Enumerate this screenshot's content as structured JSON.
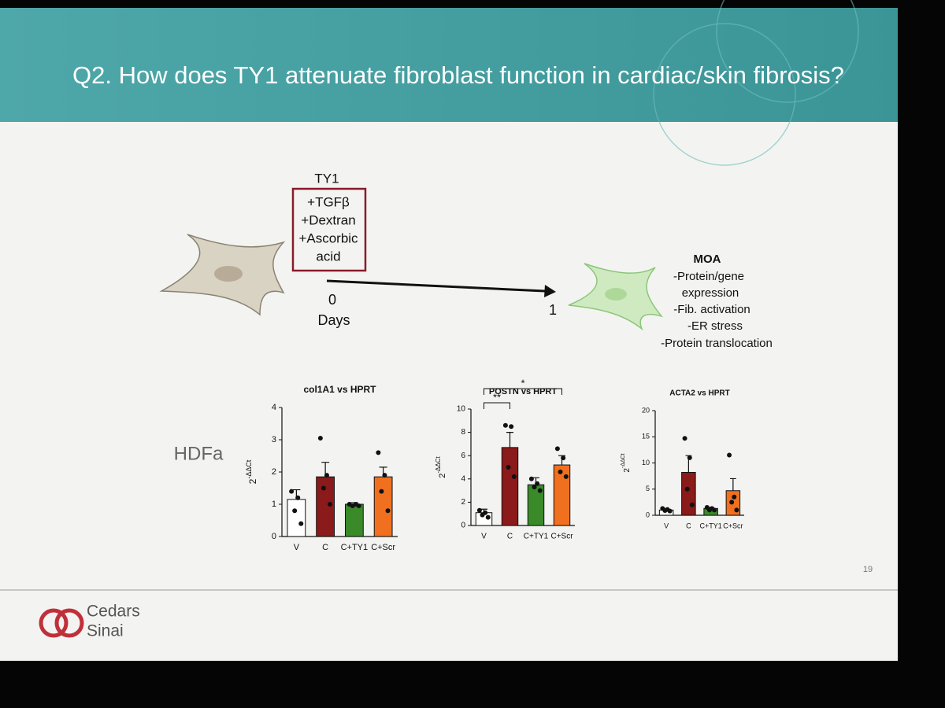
{
  "slide": {
    "title": "Q2. How does TY1 attenuate fibroblast function in cardiac/skin fibrosis?",
    "treatment": {
      "agent": "TY1",
      "box_lines": [
        "+TGFβ",
        "+Dextran",
        "+Ascorbic",
        "acid"
      ]
    },
    "timeline": {
      "start": "0",
      "unit": "Days",
      "end": "1"
    },
    "moa": {
      "heading": "MOA",
      "lines": [
        "-Protein/gene",
        "expression",
        "-Fib. activation",
        "-ER stress",
        "-Protein translocation"
      ]
    },
    "cell_line": "HDFa",
    "page_number": "19",
    "logo": [
      "Cedars",
      "Sinai"
    ]
  },
  "chart_data": [
    {
      "type": "bar",
      "title": "col1A1 vs HPRT",
      "y_label": {
        "base": "2",
        "exponent": "-ΔΔCt"
      },
      "categories": [
        "V",
        "C",
        "C+TY1",
        "C+Scr"
      ],
      "values": [
        1.15,
        1.85,
        1.0,
        1.85
      ],
      "errors": [
        0.3,
        0.45,
        0.05,
        0.3
      ],
      "points": [
        [
          1.4,
          1.2,
          0.8,
          0.4
        ],
        [
          3.05,
          1.9,
          1.5,
          1.0
        ],
        [
          1.0,
          1.0,
          0.95,
          0.95
        ],
        [
          2.6,
          1.9,
          1.4,
          0.8
        ]
      ],
      "colors": [
        "#ffffff",
        "#8b1a1a",
        "#3a8a2a",
        "#f07020"
      ],
      "ylim": [
        0,
        4
      ],
      "yticks": [
        0,
        1,
        2,
        3,
        4
      ],
      "significance": []
    },
    {
      "type": "bar",
      "title": "POSTN vs HPRT",
      "y_label": {
        "base": "2",
        "exponent": "-ΔΔCt"
      },
      "categories": [
        "V",
        "C",
        "C+TY1",
        "C+Scr"
      ],
      "values": [
        1.1,
        6.7,
        3.5,
        5.2
      ],
      "errors": [
        0.3,
        1.3,
        0.6,
        0.8
      ],
      "points": [
        [
          1.3,
          1.1,
          0.9,
          0.7
        ],
        [
          8.6,
          8.5,
          5.0,
          4.2
        ],
        [
          4.0,
          3.6,
          3.3,
          3.0
        ],
        [
          6.6,
          5.8,
          4.6,
          4.2
        ]
      ],
      "colors": [
        "#ffffff",
        "#8b1a1a",
        "#3a8a2a",
        "#f07020"
      ],
      "ylim": [
        0,
        10
      ],
      "yticks": [
        0,
        2,
        4,
        6,
        8,
        10
      ],
      "significance": [
        "**",
        "*"
      ]
    },
    {
      "type": "bar",
      "title": "ACTA2 vs HPRT",
      "y_label": {
        "base": "2",
        "exponent": "-ΔΔCt"
      },
      "categories": [
        "V",
        "C",
        "C+TY1",
        "C+Scr"
      ],
      "values": [
        1.0,
        8.2,
        1.3,
        4.7
      ],
      "errors": [
        0.3,
        3.2,
        0.2,
        2.3
      ],
      "points": [
        [
          1.3,
          1.1,
          0.9,
          0.8
        ],
        [
          14.7,
          11.0,
          5.0,
          2.0
        ],
        [
          1.5,
          1.3,
          1.0,
          1.0
        ],
        [
          11.5,
          3.5,
          2.5,
          1.0
        ]
      ],
      "colors": [
        "#ffffff",
        "#8b1a1a",
        "#3a8a2a",
        "#f07020"
      ],
      "ylim": [
        0,
        20
      ],
      "yticks": [
        0,
        5,
        10,
        15,
        20
      ],
      "significance": []
    }
  ]
}
